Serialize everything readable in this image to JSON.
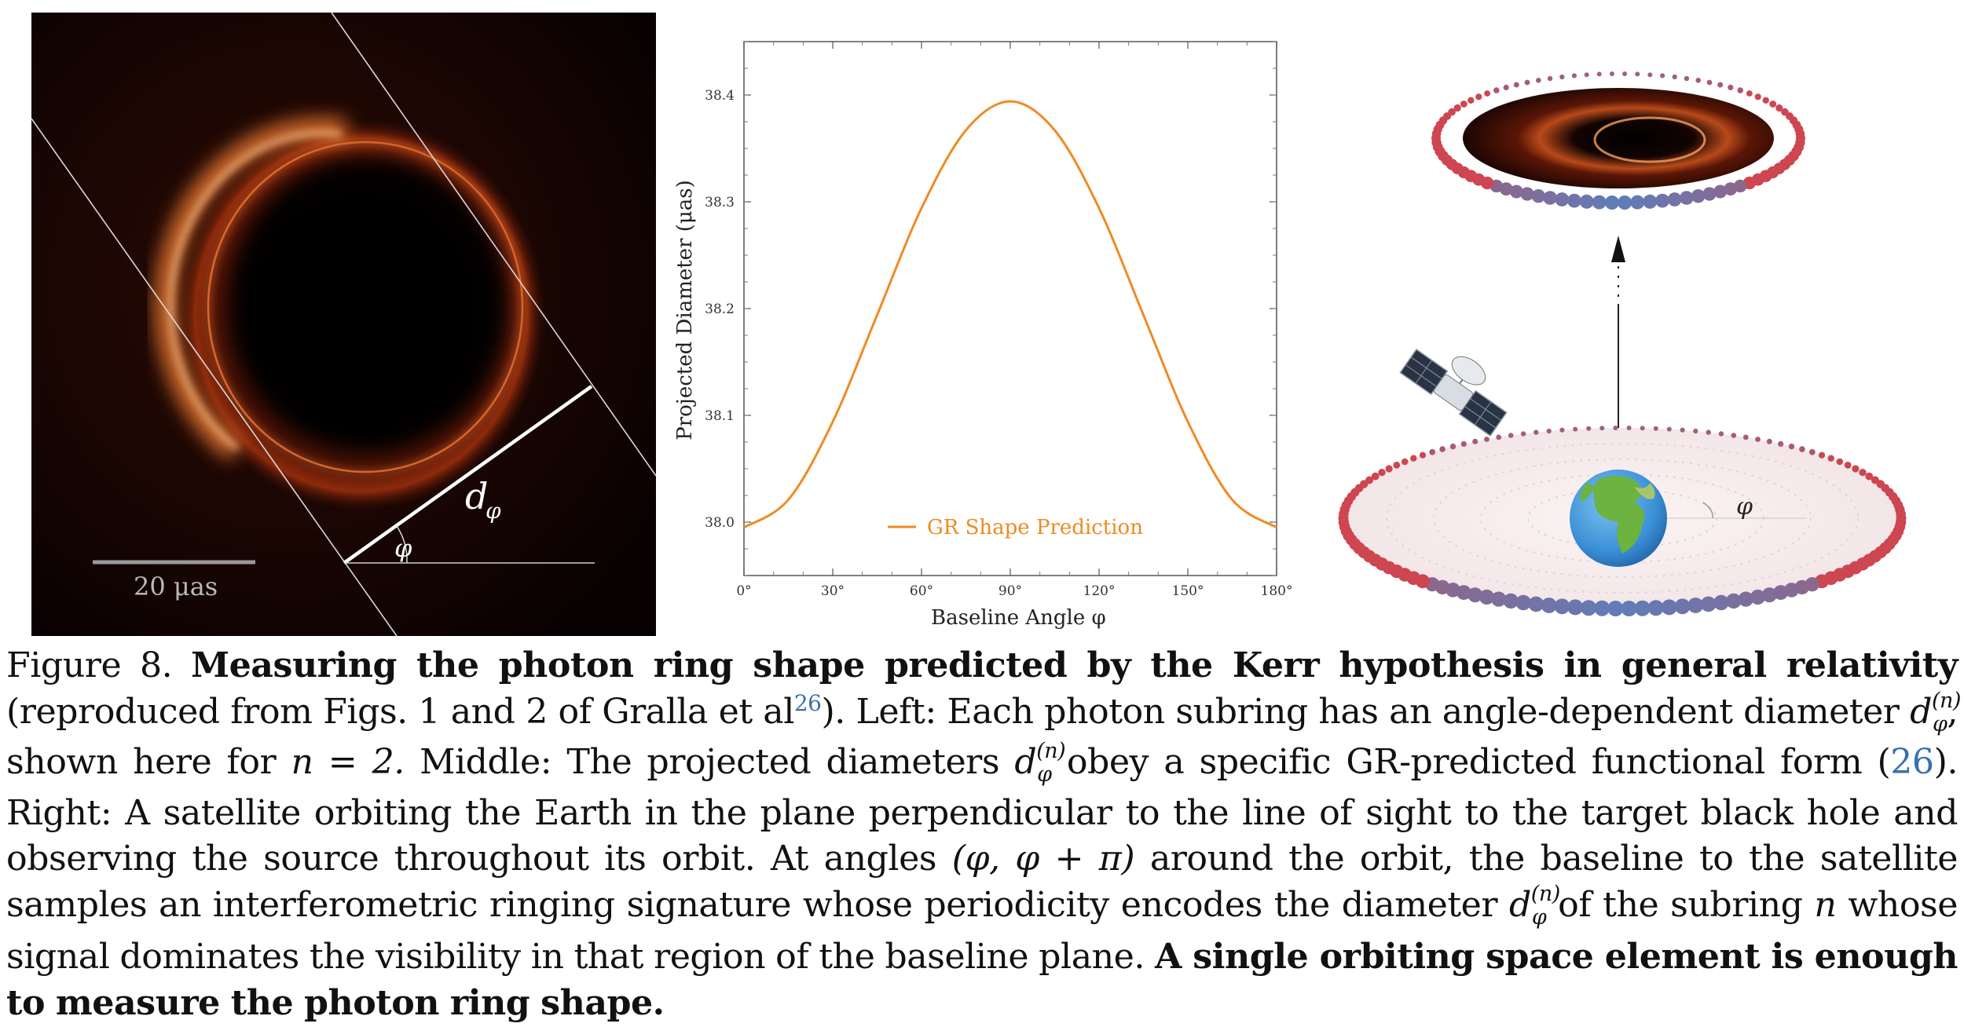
{
  "left_panel": {
    "scale_label": "20 μas",
    "diameter_label": "d",
    "diameter_subscript": "φ",
    "angle_label": "φ"
  },
  "chart_data": {
    "type": "line",
    "title": "",
    "xlabel": "Baseline Angle φ",
    "ylabel": "Projected Diameter (μas)",
    "x_ticks": [
      "0°",
      "30°",
      "60°",
      "90°",
      "120°",
      "150°",
      "180°"
    ],
    "y_ticks": [
      "38.0",
      "38.1",
      "38.2",
      "38.3",
      "38.4"
    ],
    "xlim": [
      0,
      180
    ],
    "ylim": [
      37.95,
      38.45
    ],
    "legend": "GR Shape Prediction",
    "legend_position": "bottom-center",
    "series": [
      {
        "name": "GR Shape Prediction",
        "color": "#f08a24",
        "x": [
          0,
          15,
          30,
          45,
          60,
          75,
          90,
          105,
          120,
          135,
          150,
          165,
          180
        ],
        "y": [
          37.995,
          38.021,
          38.094,
          38.194,
          38.294,
          38.367,
          38.394,
          38.367,
          38.294,
          38.194,
          38.094,
          38.021,
          37.995
        ]
      }
    ]
  },
  "right_panel": {
    "angle_label": "φ"
  },
  "caption": {
    "figure_label": "Figure 8.",
    "title_bold": "Measuring the photon ring shape predicted by the Kerr hypothesis in general relativity",
    "t1": "(reproduced from Figs. 1 and 2 of Gralla et al",
    "ref1": "26",
    "t2": "). Left: Each photon subring has an angle-dependent diameter",
    "t3": ", shown here for",
    "n_eq": "n = 2.",
    "t4": "Middle: The projected diameters",
    "t5": "obey a specific GR-predicted functional form (",
    "ref2": "26",
    "t6": "). Right: A satellite orbiting the Earth in the plane perpendicular to the line of sight to the target black hole and observing the source throughout its orbit. At angles",
    "angles": "(φ, φ + π)",
    "t7": "around the orbit, the baseline to the satellite samples an interferometric ringing signature whose periodicity encodes the diameter",
    "t8": "of the subring",
    "n_var": "n",
    "t9": "whose signal dominates the visibility in that region of the baseline plane.",
    "closing_bold": "A single orbiting space element is enough to measure the photon ring shape.",
    "d_symbol": "d",
    "d_sup": "(n)",
    "d_sub": "φ"
  }
}
